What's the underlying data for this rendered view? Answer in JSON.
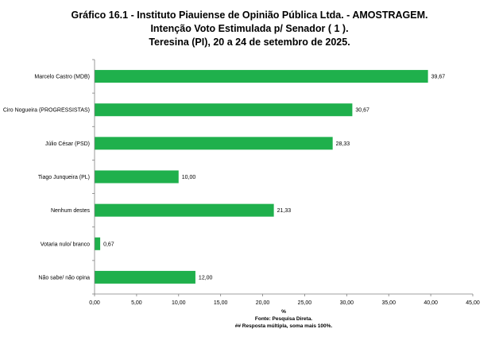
{
  "chart_data": {
    "type": "bar",
    "orientation": "horizontal",
    "title_lines": [
      "Gráfico   16.1   -   Instituto Piauiense de Opinião Pública Ltda. - AMOSTRAGEM.",
      "Intenção Voto Estimulada p/ Senador ( 1 ).",
      "Teresina (PI), 20 a 24 de setembro de 2025."
    ],
    "categories": [
      "Marcelo Castro (MDB)",
      "Ciro Nogueira (PROGRESSISTAS)",
      "Júlio César (PSD)",
      "Tiago Junqueira  (PL)",
      "Nenhum destes",
      "Votaria nulo/ branco",
      "Não sabe/ não opina"
    ],
    "values": [
      39.67,
      30.67,
      28.33,
      10.0,
      21.33,
      0.67,
      12.0
    ],
    "value_labels": [
      "39,67",
      "30,67",
      "28,33",
      "10,00",
      "21,33",
      "0,67",
      "12,00"
    ],
    "xlim": [
      0,
      45
    ],
    "xticks": [
      "0,00",
      "5,00",
      "10,00",
      "15,00",
      "20,00",
      "25,00",
      "30,00",
      "35,00",
      "40,00",
      "45,00"
    ],
    "xlabel": "%",
    "source": "Fonte: Pesquisa Direta.",
    "note": "## Resposta múltipla, soma mais 100%.",
    "bar_color": "#1fb04c",
    "grid": false
  }
}
